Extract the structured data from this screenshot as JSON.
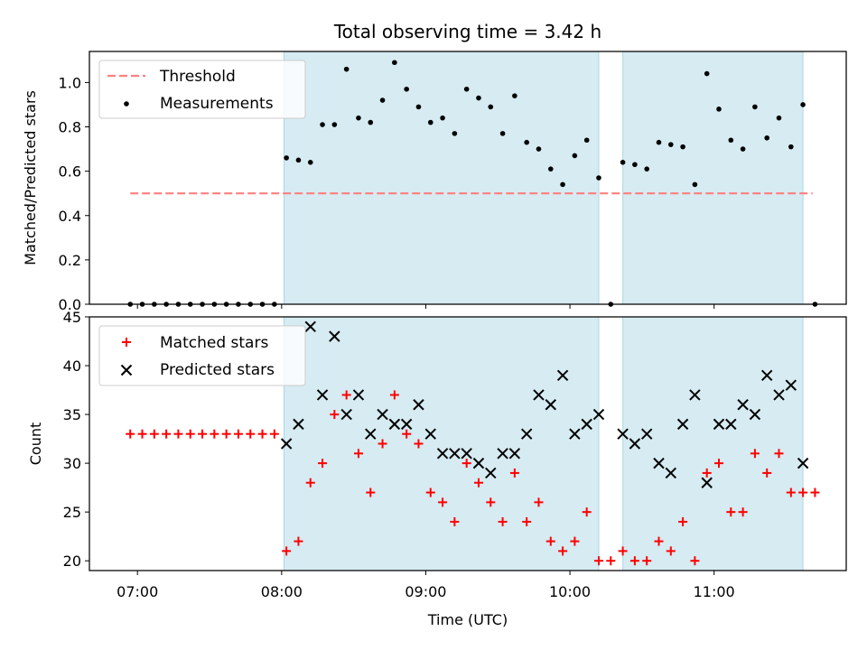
{
  "chart_data": [
    {
      "type": "scatter",
      "title": "Total observing time = 3.42 h",
      "ylabel": "Matched/Predicted stars",
      "xlim": [
        "06:40",
        "11:55"
      ],
      "ylim": [
        0,
        1.14
      ],
      "yticks": [
        "0.0",
        "0.2",
        "0.4",
        "0.6",
        "0.8",
        "1.0"
      ],
      "grid": false,
      "legend_position": "top-left",
      "shaded_intervals": [
        [
          "08:01",
          "10:12"
        ],
        [
          "10:22",
          "11:37"
        ]
      ],
      "shade_color": "#add8e6",
      "threshold": {
        "name": "Threshold",
        "value": 0.5,
        "x_range": [
          "06:57",
          "11:41"
        ],
        "color": "#ff7f7f",
        "style": "dashed"
      },
      "series": [
        {
          "name": "Measurements",
          "color": "#000000",
          "marker": "dot",
          "x": [
            "06:57",
            "07:02",
            "07:07",
            "07:12",
            "07:17",
            "07:22",
            "07:27",
            "07:32",
            "07:37",
            "07:42",
            "07:47",
            "07:52",
            "07:57",
            "08:02",
            "08:07",
            "08:12",
            "08:17",
            "08:22",
            "08:27",
            "08:32",
            "08:37",
            "08:42",
            "08:47",
            "08:52",
            "08:57",
            "09:02",
            "09:07",
            "09:12",
            "09:17",
            "09:22",
            "09:27",
            "09:32",
            "09:37",
            "09:42",
            "09:47",
            "09:52",
            "09:57",
            "10:02",
            "10:07",
            "10:12",
            "10:17",
            "10:22",
            "10:27",
            "10:32",
            "10:37",
            "10:42",
            "10:47",
            "10:52",
            "10:57",
            "11:02",
            "11:07",
            "11:12",
            "11:17",
            "11:22",
            "11:27",
            "11:32",
            "11:37",
            "11:42"
          ],
          "y": [
            0,
            0,
            0,
            0,
            0,
            0,
            0,
            0,
            0,
            0,
            0,
            0,
            0,
            0.66,
            0.65,
            0.64,
            0.81,
            0.81,
            1.06,
            0.84,
            0.82,
            0.92,
            1.09,
            0.97,
            0.89,
            0.82,
            0.84,
            0.77,
            0.97,
            0.93,
            0.89,
            0.77,
            0.94,
            0.73,
            0.7,
            0.61,
            0.54,
            0.67,
            0.74,
            0.57,
            0,
            0.64,
            0.63,
            0.61,
            0.73,
            0.72,
            0.71,
            0.54,
            1.04,
            0.88,
            0.74,
            0.7,
            0.89,
            0.75,
            0.84,
            0.71,
            0.9,
            0
          ]
        }
      ]
    },
    {
      "type": "scatter",
      "xlabel": "Time (UTC)",
      "ylabel": "Count",
      "xlim": [
        "06:40",
        "11:55"
      ],
      "ylim": [
        19,
        45
      ],
      "yticks": [
        "20",
        "25",
        "30",
        "35",
        "40",
        "45"
      ],
      "xticks": [
        "07:00",
        "08:00",
        "09:00",
        "10:00",
        "11:00"
      ],
      "grid": false,
      "legend_position": "top-left",
      "shaded_intervals": [
        [
          "08:01",
          "10:12"
        ],
        [
          "10:22",
          "11:37"
        ]
      ],
      "shade_color": "#add8e6",
      "series": [
        {
          "name": "Matched stars",
          "color": "#ff0000",
          "marker": "plus",
          "x": [
            "06:57",
            "07:02",
            "07:07",
            "07:12",
            "07:17",
            "07:22",
            "07:27",
            "07:32",
            "07:37",
            "07:42",
            "07:47",
            "07:52",
            "07:57",
            "08:02",
            "08:07",
            "08:12",
            "08:17",
            "08:22",
            "08:27",
            "08:32",
            "08:37",
            "08:42",
            "08:47",
            "08:52",
            "08:57",
            "09:02",
            "09:07",
            "09:12",
            "09:17",
            "09:22",
            "09:27",
            "09:32",
            "09:37",
            "09:42",
            "09:47",
            "09:52",
            "09:57",
            "10:02",
            "10:07",
            "10:12",
            "10:17",
            "10:22",
            "10:27",
            "10:32",
            "10:37",
            "10:42",
            "10:47",
            "10:52",
            "10:57",
            "11:02",
            "11:07",
            "11:12",
            "11:17",
            "11:22",
            "11:27",
            "11:32",
            "11:37",
            "11:42"
          ],
          "y": [
            33,
            33,
            33,
            33,
            33,
            33,
            33,
            33,
            33,
            33,
            33,
            33,
            33,
            21,
            22,
            28,
            30,
            35,
            37,
            31,
            27,
            32,
            37,
            33,
            32,
            27,
            26,
            24,
            30,
            28,
            26,
            24,
            29,
            24,
            26,
            22,
            21,
            22,
            25,
            20,
            20,
            21,
            20,
            20,
            22,
            21,
            24,
            20,
            29,
            30,
            25,
            25,
            31,
            29,
            31,
            27,
            27,
            27
          ]
        },
        {
          "name": "Predicted stars",
          "color": "#000000",
          "marker": "x",
          "x": [
            "08:02",
            "08:07",
            "08:12",
            "08:17",
            "08:22",
            "08:27",
            "08:32",
            "08:37",
            "08:42",
            "08:47",
            "08:52",
            "08:57",
            "09:02",
            "09:07",
            "09:12",
            "09:17",
            "09:22",
            "09:27",
            "09:32",
            "09:37",
            "09:42",
            "09:47",
            "09:52",
            "09:57",
            "10:02",
            "10:07",
            "10:12",
            "10:22",
            "10:27",
            "10:32",
            "10:37",
            "10:42",
            "10:47",
            "10:52",
            "10:57",
            "11:02",
            "11:07",
            "11:12",
            "11:17",
            "11:22",
            "11:27",
            "11:32",
            "11:37"
          ],
          "y": [
            32,
            34,
            44,
            37,
            43,
            35,
            37,
            33,
            35,
            34,
            34,
            36,
            33,
            31,
            31,
            31,
            30,
            29,
            31,
            31,
            33,
            37,
            36,
            39,
            33,
            34,
            35,
            33,
            32,
            33,
            30,
            29,
            34,
            37,
            28,
            34,
            34,
            36,
            35,
            39,
            37,
            38,
            30
          ]
        }
      ]
    }
  ]
}
